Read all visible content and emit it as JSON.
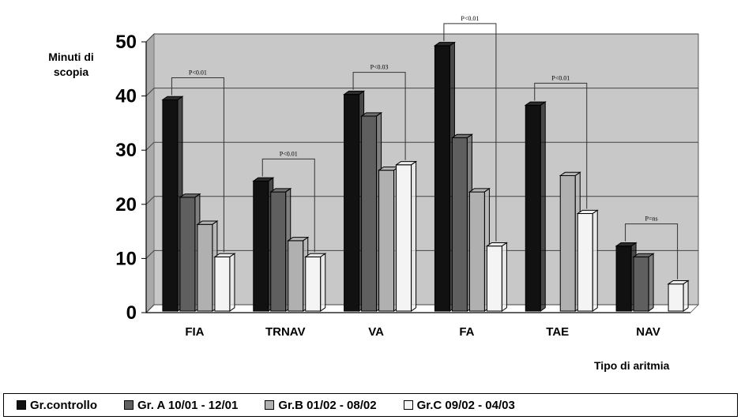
{
  "chart_data": {
    "type": "bar",
    "ylabel": "Minuti di\nscopia",
    "xlabel": "Tipo di aritmia",
    "ylim": [
      0,
      50
    ],
    "yticks": [
      0,
      10,
      20,
      30,
      40,
      50
    ],
    "grid": true,
    "legend_position": "bottom",
    "categories": [
      "FIA",
      "TRNAV",
      "VA",
      "FA",
      "TAE",
      "NAV"
    ],
    "series": [
      {
        "name": "Gr.controllo",
        "color": "#111111",
        "values": [
          39,
          24,
          40,
          49,
          38,
          12
        ]
      },
      {
        "name": "Gr. A 10/01 - 12/01",
        "color": "#5f5f5f",
        "values": [
          21,
          22,
          36,
          32,
          null,
          10
        ]
      },
      {
        "name": "Gr.B 01/02 - 08/02",
        "color": "#b0b0b0",
        "values": [
          16,
          13,
          26,
          22,
          25,
          null
        ]
      },
      {
        "name": "Gr.C 09/02 - 04/03",
        "color": "#f4f4f4",
        "values": [
          10,
          10,
          27,
          12,
          18,
          5
        ]
      }
    ],
    "annotations": [
      {
        "category": "FIA",
        "text": "P<0.01"
      },
      {
        "category": "TRNAV",
        "text": "P<0.01"
      },
      {
        "category": "VA",
        "text": "P<0.03"
      },
      {
        "category": "FA",
        "text": "P<0.01"
      },
      {
        "category": "TAE",
        "text": "P<0.01"
      },
      {
        "category": "NAV",
        "text": "P=ns"
      }
    ],
    "plot_background": "#c8c8c8"
  }
}
